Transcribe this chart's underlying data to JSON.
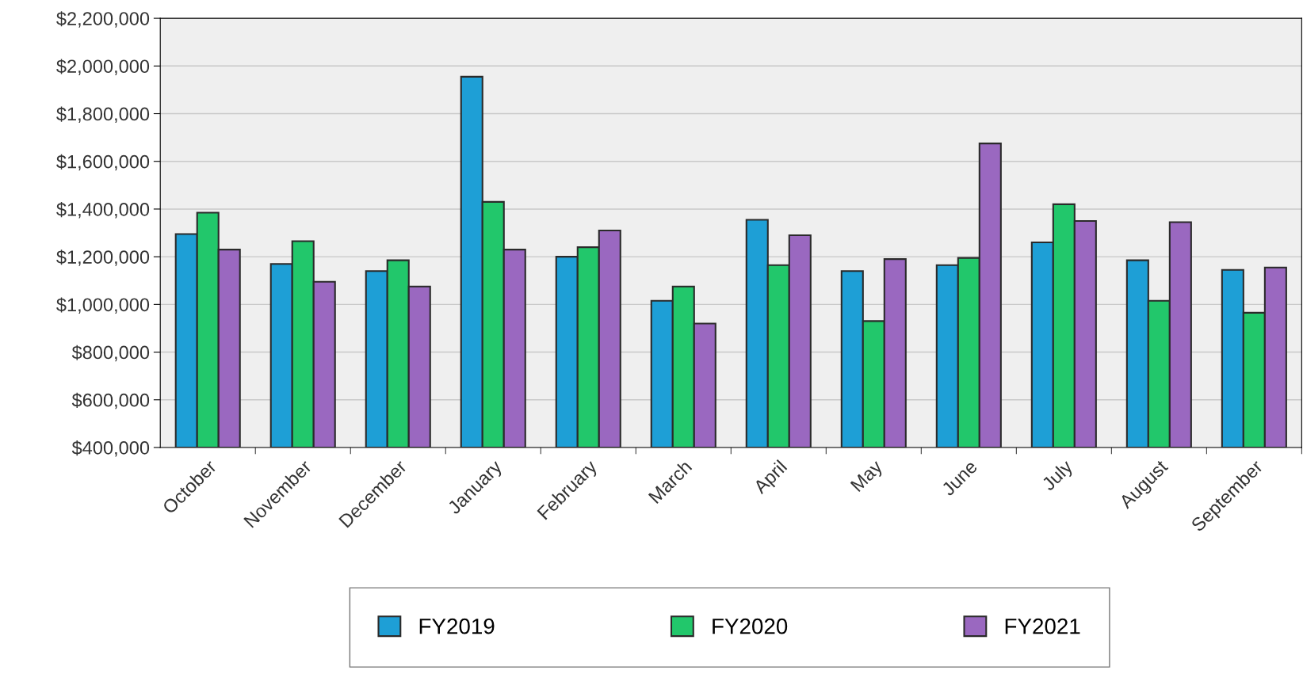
{
  "chart_data": {
    "type": "bar",
    "categories": [
      "October",
      "November",
      "December",
      "January",
      "February",
      "March",
      "April",
      "May",
      "June",
      "July",
      "August",
      "September"
    ],
    "series": [
      {
        "name": "FY2019",
        "color": "#1e9fd6",
        "values": [
          1295000,
          1170000,
          1140000,
          1955000,
          1200000,
          1015000,
          1355000,
          1140000,
          1165000,
          1260000,
          1185000,
          1145000
        ]
      },
      {
        "name": "FY2020",
        "color": "#22c76b",
        "values": [
          1385000,
          1265000,
          1185000,
          1430000,
          1240000,
          1075000,
          1165000,
          930000,
          1195000,
          1420000,
          1015000,
          965000
        ]
      },
      {
        "name": "FY2021",
        "color": "#9a68c0",
        "values": [
          1230000,
          1095000,
          1075000,
          1230000,
          1310000,
          920000,
          1290000,
          1190000,
          1675000,
          1350000,
          1345000,
          1155000
        ]
      }
    ],
    "ylim": [
      400000,
      2200000
    ],
    "yticks": [
      {
        "value": 400000,
        "label": "$400,000"
      },
      {
        "value": 600000,
        "label": "$600,000"
      },
      {
        "value": 800000,
        "label": "$800,000"
      },
      {
        "value": 1000000,
        "label": "$1,000,000"
      },
      {
        "value": 1200000,
        "label": "$1,200,000"
      },
      {
        "value": 1400000,
        "label": "$1,400,000"
      },
      {
        "value": 1600000,
        "label": "$1,600,000"
      },
      {
        "value": 1800000,
        "label": "$1,800,000"
      },
      {
        "value": 2000000,
        "label": "$2,000,000"
      },
      {
        "value": 2200000,
        "label": "$2,200,000"
      }
    ],
    "grid": "y",
    "legend": "bottom"
  }
}
